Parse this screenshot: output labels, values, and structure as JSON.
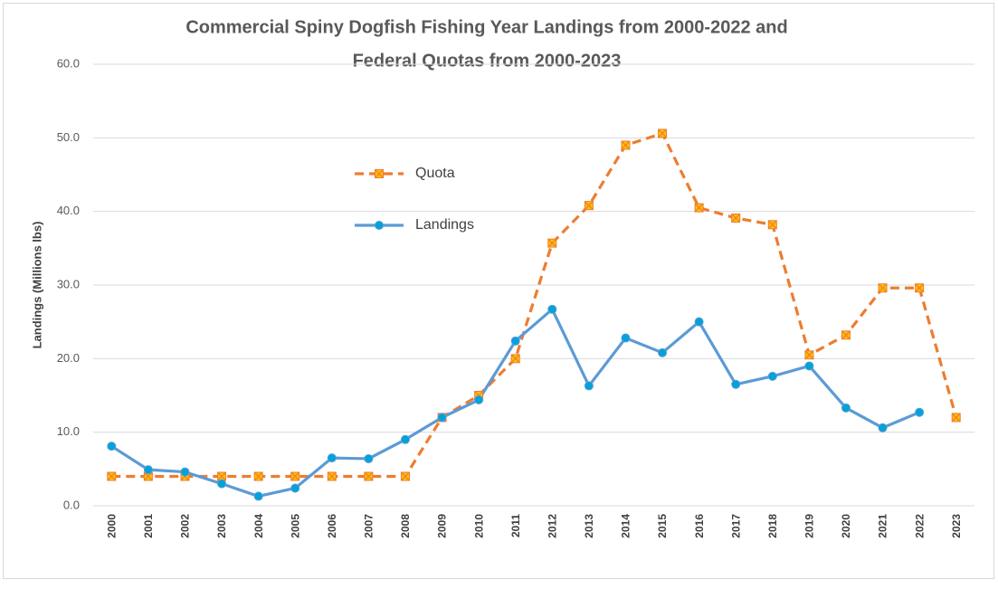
{
  "chart_data": {
    "type": "line",
    "title": [
      "Commercial Spiny Dogfish Fishing Year Landings from 2000-2022 and",
      "Federal Quotas from 2000-2023"
    ],
    "y_label": "Landings (Millions lbs)",
    "categories": [
      "2000",
      "2001",
      "2002",
      "2003",
      "2004",
      "2005",
      "2006",
      "2007",
      "2008",
      "2009",
      "2010",
      "2011",
      "2012",
      "2013",
      "2014",
      "2015",
      "2016",
      "2017",
      "2018",
      "2019",
      "2020",
      "2021",
      "2022",
      "2023"
    ],
    "series": [
      {
        "name": "Quota",
        "color": "#ED7D31",
        "marker_color": "#FFC000",
        "dashed": true,
        "marker": "square-x",
        "values": [
          4.0,
          4.0,
          4.0,
          4.0,
          4.0,
          4.0,
          4.0,
          4.0,
          4.0,
          12.0,
          15.0,
          20.0,
          35.7,
          40.8,
          49.0,
          50.6,
          40.5,
          39.1,
          38.2,
          20.5,
          23.2,
          29.6,
          29.6,
          12.0
        ]
      },
      {
        "name": "Landings",
        "color": "#5B9BD5",
        "marker_color": "#00A3D9",
        "dashed": false,
        "marker": "circle",
        "values": [
          8.1,
          4.9,
          4.6,
          3.0,
          1.3,
          2.4,
          6.5,
          6.4,
          9.0,
          12.0,
          14.4,
          22.4,
          26.7,
          16.3,
          22.8,
          20.8,
          25.0,
          16.5,
          17.6,
          19.0,
          13.3,
          10.6,
          12.7,
          null
        ]
      }
    ],
    "ylim": [
      0,
      60
    ],
    "yticks": [
      {
        "value": 0,
        "label": "0.0"
      },
      {
        "value": 10,
        "label": "10.0"
      },
      {
        "value": 20,
        "label": "20.0"
      },
      {
        "value": 30,
        "label": "30.0"
      },
      {
        "value": 40,
        "label": "40.0"
      },
      {
        "value": 50,
        "label": "50.0"
      },
      {
        "value": 60,
        "label": "60.0"
      }
    ],
    "grid": true
  }
}
